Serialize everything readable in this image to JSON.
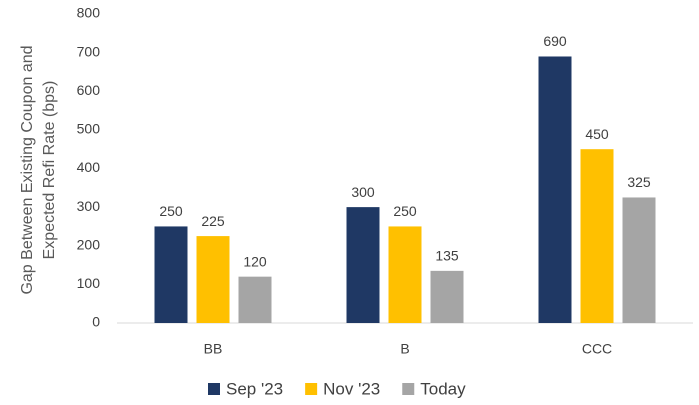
{
  "chart_data": {
    "type": "bar",
    "ylabel": [
      "Gap Between Existing Coupon and",
      "Expected Refi Rate (bps)"
    ],
    "categories": [
      "BB",
      "B",
      "CCC"
    ],
    "series": [
      {
        "name": "Sep '23",
        "color": "#1f3864",
        "values": [
          250,
          300,
          690
        ]
      },
      {
        "name": "Nov '23",
        "color": "#ffc000",
        "values": [
          225,
          250,
          450
        ]
      },
      {
        "name": "Today",
        "color": "#a5a5a5",
        "values": [
          120,
          135,
          325
        ]
      }
    ],
    "ylim": [
      0,
      800
    ],
    "yticks": [
      0,
      100,
      200,
      300,
      400,
      500,
      600,
      700,
      800
    ],
    "grid": false,
    "legend": "bottom"
  }
}
